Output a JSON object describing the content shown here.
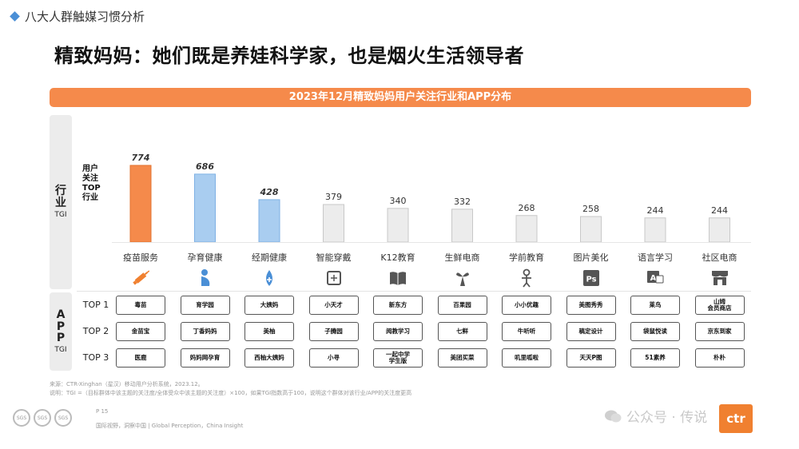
{
  "header": {
    "section_tag": "八大人群触媒习惯分析",
    "title": "精致妈妈：她们既是养娃科学家，也是烟火生活领导者",
    "banner": "2023年12月精致妈妈用户关注行业和APP分布"
  },
  "side": {
    "industry_chars": [
      "行",
      "业"
    ],
    "industry_sub": "TGI",
    "app_chars": [
      "A",
      "P",
      "P"
    ],
    "app_sub": "TGI"
  },
  "plot_label": [
    "用户",
    "关注",
    "TOP",
    "行业"
  ],
  "colors": {
    "orange": "#f58a4b",
    "blue": "#a9cdf0",
    "gray": "#ececec"
  },
  "chart_data": {
    "type": "bar",
    "categories": [
      "疫苗服务",
      "孕育健康",
      "经期健康",
      "智能穿戴",
      "K12教育",
      "生鲜电商",
      "学前教育",
      "图片美化",
      "语言学习",
      "社区电商"
    ],
    "values": [
      774,
      686,
      428,
      379,
      340,
      332,
      268,
      258,
      244,
      244
    ],
    "value_labels": [
      "774",
      "686",
      "428",
      "379",
      "340",
      "332",
      "268",
      "258",
      "244",
      "244"
    ],
    "bar_colors": [
      "orange",
      "blue",
      "blue",
      "gray",
      "gray",
      "gray",
      "gray",
      "gray",
      "gray",
      "gray"
    ],
    "highlight": [
      true,
      true,
      true,
      false,
      false,
      false,
      false,
      false,
      false,
      false
    ],
    "icons": [
      "syringe-icon",
      "pregnancy-icon",
      "drop-icon",
      "wearable-icon",
      "book-icon",
      "vegetable-icon",
      "child-icon",
      "ps-icon",
      "language-icon",
      "store-icon"
    ],
    "ylim": [
      0,
      800
    ]
  },
  "apps": {
    "row_labels": [
      "TOP 1",
      "TOP 2",
      "TOP 3"
    ],
    "rows": [
      [
        "毒苗",
        "育学园",
        "大姨妈",
        "小天才",
        "新东方",
        "百果园",
        "小小优趣",
        "美图秀秀",
        "莱鸟",
        "山姆\n会员商店"
      ],
      [
        "金苗宝",
        "丁香妈妈",
        "美柚",
        "子腾园",
        "阅教学习",
        "七鲜",
        "牛听听",
        "稿定设计",
        "袋鼠悦读",
        "京东到家"
      ],
      [
        "医鹿",
        "妈妈网孕育",
        "西柚大姨妈",
        "小寻",
        "一起中学\n学生版",
        "美团买菜",
        "叽里呱啦",
        "天天P图",
        "51素养",
        "朴朴"
      ]
    ]
  },
  "footnotes": {
    "source": "来源：CTR-Xinghan（星汉）移动用户分析系统，2023.12。",
    "note": "说明：TGI =（目标群体中该主题的关注度/全体受众中该主题的关注度）×100，如果TGI指数高于100，说明这个群体对该行业/APP的关注度更高"
  },
  "footer": {
    "page": "P 15",
    "slogan": "国际视野，洞察中国 | Global Perception，China Insight",
    "watermark": "公众号 · 传说",
    "logo": "ctr",
    "seals": [
      "SGS",
      "SGS",
      "SGS"
    ]
  }
}
